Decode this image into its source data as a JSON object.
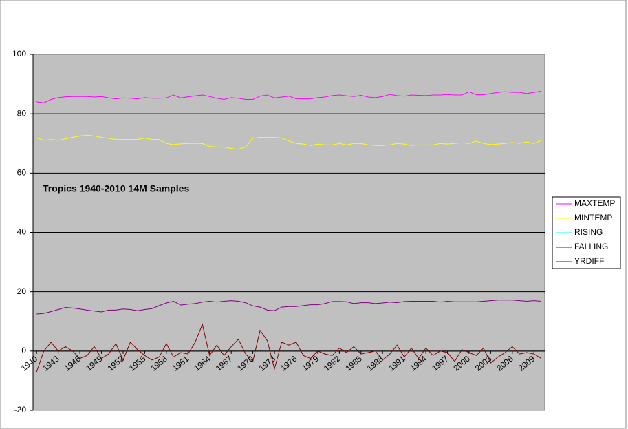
{
  "chart_data": {
    "type": "line",
    "title": "Tropics 1940-2010 14M Samples",
    "categories": [
      "1940",
      null,
      null,
      "1943",
      null,
      null,
      "1946",
      null,
      null,
      "1949",
      null,
      null,
      "1952",
      null,
      null,
      "1955",
      null,
      null,
      "1958",
      null,
      null,
      "1961",
      null,
      null,
      "1964",
      null,
      null,
      "1967",
      null,
      null,
      "1970",
      null,
      null,
      "1973",
      null,
      null,
      "1976",
      null,
      null,
      "1979",
      null,
      null,
      "1982",
      null,
      null,
      "1985",
      null,
      null,
      "1988",
      null,
      null,
      "1991",
      null,
      null,
      "1994",
      null,
      null,
      "1997",
      null,
      null,
      "2000",
      null,
      null,
      "2003",
      null,
      null,
      "2006",
      null,
      null,
      "2009",
      null
    ],
    "series": [
      {
        "name": "MAXTEMP",
        "color": "#ff00ff",
        "values": [
          84.0,
          83.7,
          84.8,
          85.4,
          85.7,
          85.8,
          85.8,
          85.8,
          85.6,
          85.8,
          85.3,
          85.0,
          85.3,
          85.2,
          85.0,
          85.4,
          85.2,
          85.2,
          85.3,
          86.3,
          85.3,
          85.7,
          86.0,
          86.3,
          85.8,
          85.2,
          84.8,
          85.4,
          85.2,
          84.8,
          84.8,
          85.9,
          86.3,
          85.3,
          85.6,
          85.9,
          85.0,
          85.0,
          85.0,
          85.4,
          85.6,
          86.1,
          86.3,
          86.0,
          85.8,
          86.2,
          85.6,
          85.4,
          85.8,
          86.5,
          86.1,
          85.9,
          86.3,
          86.2,
          86.1,
          86.3,
          86.3,
          86.5,
          86.3,
          86.3,
          87.4,
          86.4,
          86.4,
          86.8,
          87.2,
          87.4,
          87.2,
          87.2,
          86.8,
          87.2,
          87.6
        ]
      },
      {
        "name": "MINTEMP",
        "color": "#ffff00",
        "values": [
          71.8,
          71.0,
          71.3,
          71.0,
          71.5,
          72.0,
          72.5,
          72.8,
          72.5,
          72.0,
          71.7,
          71.3,
          71.3,
          71.3,
          71.3,
          71.8,
          71.3,
          71.3,
          70.0,
          69.6,
          69.9,
          70.0,
          70.0,
          70.0,
          69.0,
          68.8,
          68.8,
          68.3,
          68.0,
          68.8,
          71.7,
          72.0,
          72.0,
          72.0,
          71.8,
          70.8,
          70.0,
          69.8,
          69.3,
          69.8,
          69.5,
          69.5,
          70.0,
          69.5,
          70.0,
          70.0,
          69.5,
          69.3,
          69.3,
          69.5,
          70.0,
          69.8,
          69.3,
          69.5,
          69.5,
          69.5,
          70.0,
          69.8,
          70.0,
          70.2,
          70.0,
          70.8,
          70.0,
          69.6,
          69.8,
          70.0,
          70.3,
          70.0,
          70.5,
          70.0,
          71.0
        ]
      },
      {
        "name": "RISING",
        "color": "#00ffff",
        "values": [
          null,
          null,
          null,
          null,
          null,
          null,
          null,
          null,
          null,
          null,
          null,
          null,
          null,
          null,
          null,
          null,
          null,
          null,
          null,
          null,
          null,
          null,
          null,
          null,
          null,
          null,
          null,
          null,
          null,
          null,
          null,
          null,
          null,
          null,
          null,
          null,
          null,
          null,
          null,
          null,
          null,
          null,
          null,
          null,
          null,
          null,
          null,
          null,
          null,
          null,
          null,
          null,
          null,
          null,
          null,
          null,
          null,
          null,
          null,
          null,
          null,
          null,
          null,
          null,
          null,
          null,
          null,
          null,
          null,
          null,
          null
        ]
      },
      {
        "name": "FALLING",
        "color": "#800080",
        "values": [
          12.5,
          12.7,
          13.3,
          14.0,
          14.7,
          14.5,
          14.2,
          13.8,
          13.5,
          13.2,
          13.8,
          13.8,
          14.2,
          14.0,
          13.6,
          14.0,
          14.3,
          15.3,
          16.2,
          16.8,
          15.5,
          15.8,
          16.0,
          16.5,
          16.8,
          16.5,
          16.8,
          17.0,
          16.8,
          16.3,
          15.2,
          14.8,
          13.8,
          13.6,
          14.8,
          15.0,
          15.0,
          15.3,
          15.6,
          15.6,
          16.0,
          16.7,
          16.7,
          16.6,
          16.0,
          16.3,
          16.3,
          16.0,
          16.2,
          16.5,
          16.3,
          16.7,
          16.8,
          16.8,
          16.8,
          16.8,
          16.5,
          16.8,
          16.6,
          16.6,
          16.6,
          16.6,
          16.8,
          17.0,
          17.2,
          17.2,
          17.2,
          17.0,
          16.8,
          17.0,
          16.8
        ]
      },
      {
        "name": "YRDIFF",
        "color": "#800000",
        "values": [
          -7,
          0,
          3,
          0,
          1.5,
          0,
          -2.5,
          -1.5,
          1.5,
          -2.5,
          -1,
          2.5,
          -3,
          3,
          0.5,
          -1.5,
          -3,
          -2,
          2.5,
          -2,
          -0.5,
          -1,
          3,
          9,
          -1.5,
          2,
          -1.5,
          1.5,
          4,
          -1,
          -3.5,
          7,
          3.5,
          -6,
          3,
          2,
          3,
          -1.5,
          -2.5,
          0,
          -1,
          -1.5,
          1,
          -0.5,
          1.5,
          -1,
          -0.5,
          0,
          -3,
          -1,
          2,
          -2,
          1,
          -2.5,
          1,
          -1.5,
          0,
          -0.5,
          -3.5,
          0.5,
          -0.5,
          -1.5,
          1,
          -4,
          -2,
          -0.5,
          1.5,
          -1,
          -0.5,
          -1,
          -2.5
        ]
      }
    ],
    "ylim": [
      -20,
      100
    ],
    "yticks": [
      -20,
      0,
      20,
      40,
      60,
      80,
      100
    ],
    "grid": true,
    "legend": "right"
  }
}
